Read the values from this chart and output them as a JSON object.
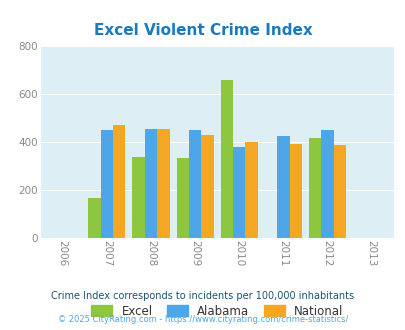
{
  "title": "Excel Violent Crime Index",
  "title_color": "#1a7abf",
  "background_color": "#deeef5",
  "fig_background": "#ffffff",
  "years": [
    2006,
    2007,
    2008,
    2009,
    2010,
    2011,
    2012,
    2013
  ],
  "bar_years": [
    2007,
    2008,
    2009,
    2010,
    2011,
    2012
  ],
  "excel_values": [
    165,
    335,
    332,
    660,
    0,
    415
  ],
  "alabama_values": [
    450,
    455,
    450,
    378,
    423,
    450
  ],
  "national_values": [
    470,
    455,
    428,
    400,
    390,
    388
  ],
  "excel_color": "#8dc63f",
  "alabama_color": "#4da6e8",
  "national_color": "#f5a623",
  "ylim": [
    0,
    800
  ],
  "yticks": [
    0,
    200,
    400,
    600,
    800
  ],
  "bar_width": 0.28,
  "legend_labels": [
    "Excel",
    "Alabama",
    "National"
  ],
  "footnote1": "Crime Index corresponds to incidents per 100,000 inhabitants",
  "footnote2": "© 2025 CityRating.com - https://www.cityrating.com/crime-statistics/",
  "footnote1_color": "#1a5276",
  "footnote2_color": "#4da6e8",
  "tick_color": "#888888",
  "grid_color": "#ffffff"
}
